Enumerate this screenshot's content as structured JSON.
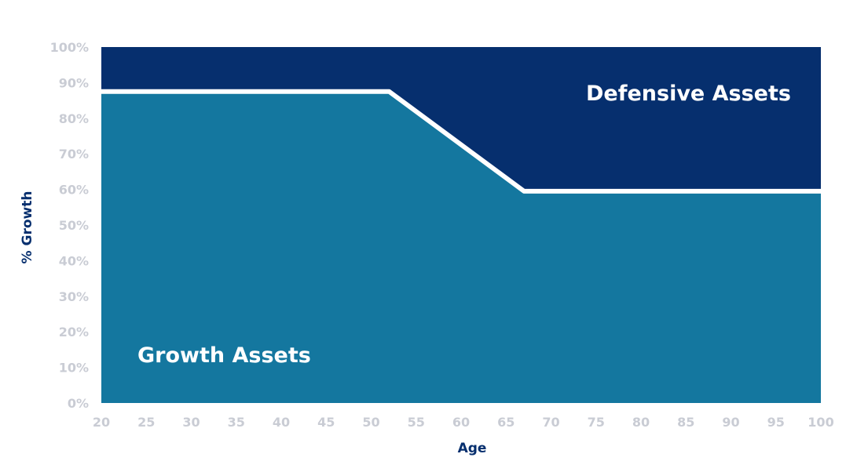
{
  "chart_data": {
    "type": "area",
    "xlabel": "Age",
    "ylabel": "% Growth",
    "xlim": [
      20,
      100
    ],
    "ylim": [
      0,
      100
    ],
    "x_ticks": [
      20,
      25,
      30,
      35,
      40,
      45,
      50,
      55,
      60,
      65,
      70,
      75,
      80,
      85,
      90,
      95,
      100
    ],
    "y_ticks": [
      0,
      10,
      20,
      30,
      40,
      50,
      60,
      70,
      80,
      90,
      100
    ],
    "y_tick_suffix": "%",
    "grid": false,
    "series": [
      {
        "name": "Growth Assets",
        "color": "#14779f",
        "points": [
          [
            20,
            87.5
          ],
          [
            52,
            87.5
          ],
          [
            67,
            59.5
          ],
          [
            100,
            59.5
          ]
        ]
      },
      {
        "name": "Defensive Assets",
        "color": "#062f6e",
        "points": [
          [
            20,
            12.5
          ],
          [
            52,
            12.5
          ],
          [
            67,
            40.5
          ],
          [
            100,
            40.5
          ]
        ]
      }
    ],
    "annotations": [
      {
        "text": "Growth Assets",
        "series": "Growth Assets"
      },
      {
        "text": "Defensive Assets",
        "series": "Defensive Assets"
      }
    ],
    "boundary_line_color": "#ffffff"
  }
}
